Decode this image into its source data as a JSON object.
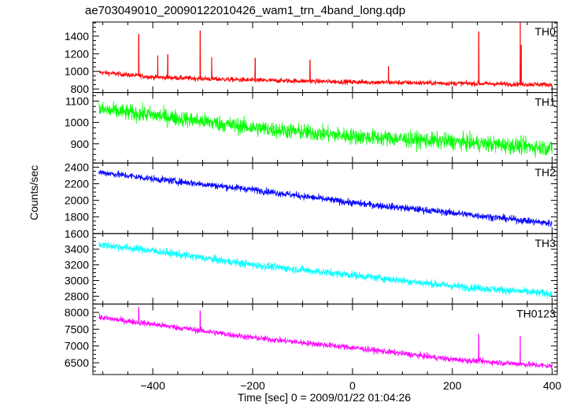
{
  "chart_data": {
    "type": "line",
    "title": "ae703049010_20090122010426_wam1_trn_4band_long.qdp",
    "xlabel": "Time [sec] 0 = 2009/01/22 01:04:26",
    "ylabel": "Counts/sec",
    "xlim": [
      -520,
      410
    ],
    "x_ticks": [
      -400,
      -200,
      0,
      200,
      400
    ],
    "x_tick_labels": [
      "−400",
      "−200",
      "0",
      "200",
      "400"
    ],
    "x_range": [
      -508,
      400
    ],
    "grid": false,
    "legend": "none",
    "panels": [
      {
        "name": "TH0",
        "color": "#ff0000",
        "ylim": [
          760,
          1560
        ],
        "y_ticks": [
          800,
          1000,
          1200,
          1400
        ],
        "trend": [
          [
            -508,
            990
          ],
          [
            -400,
            935
          ],
          [
            -200,
            900
          ],
          [
            0,
            880
          ],
          [
            200,
            865
          ],
          [
            400,
            850
          ]
        ],
        "noise": 28,
        "spikes": [
          [
            -428,
            1420
          ],
          [
            -390,
            1180
          ],
          [
            -370,
            1190
          ],
          [
            -305,
            1460
          ],
          [
            -282,
            1160
          ],
          [
            -195,
            1150
          ],
          [
            -85,
            1130
          ],
          [
            72,
            1060
          ],
          [
            253,
            1450
          ],
          [
            336,
            1560
          ],
          [
            338,
            1300
          ]
        ]
      },
      {
        "name": "TH1",
        "color": "#00ff00",
        "ylim": [
          810,
          1140
        ],
        "y_ticks": [
          900,
          1000,
          1100
        ],
        "trend": [
          [
            -508,
            1060
          ],
          [
            -400,
            1035
          ],
          [
            -200,
            975
          ],
          [
            0,
            935
          ],
          [
            200,
            910
          ],
          [
            400,
            880
          ]
        ],
        "noise": 38,
        "spikes": []
      },
      {
        "name": "TH2",
        "color": "#0000ff",
        "ylim": [
          1600,
          2450
        ],
        "y_ticks": [
          1600,
          1800,
          2000,
          2200,
          2400
        ],
        "trend": [
          [
            -508,
            2340
          ],
          [
            -400,
            2260
          ],
          [
            -200,
            2130
          ],
          [
            0,
            1970
          ],
          [
            200,
            1850
          ],
          [
            400,
            1720
          ]
        ],
        "noise": 42,
        "spikes": []
      },
      {
        "name": "TH3",
        "color": "#00ffff",
        "ylim": [
          2700,
          3600
        ],
        "y_ticks": [
          2800,
          3000,
          3200,
          3400
        ],
        "trend": [
          [
            -508,
            3460
          ],
          [
            -400,
            3380
          ],
          [
            -200,
            3200
          ],
          [
            0,
            3070
          ],
          [
            200,
            2930
          ],
          [
            400,
            2830
          ]
        ],
        "noise": 50,
        "spikes": []
      },
      {
        "name": "TH0123",
        "color": "#ff00ff",
        "ylim": [
          6150,
          8250
        ],
        "y_ticks": [
          6500,
          7000,
          7500,
          8000
        ],
        "trend": [
          [
            -508,
            7850
          ],
          [
            -400,
            7650
          ],
          [
            -200,
            7250
          ],
          [
            0,
            6950
          ],
          [
            200,
            6600
          ],
          [
            400,
            6400
          ]
        ],
        "noise": 90,
        "spikes": [
          [
            -305,
            8050
          ],
          [
            -428,
            8150
          ],
          [
            253,
            7350
          ],
          [
            336,
            7300
          ]
        ]
      }
    ]
  }
}
